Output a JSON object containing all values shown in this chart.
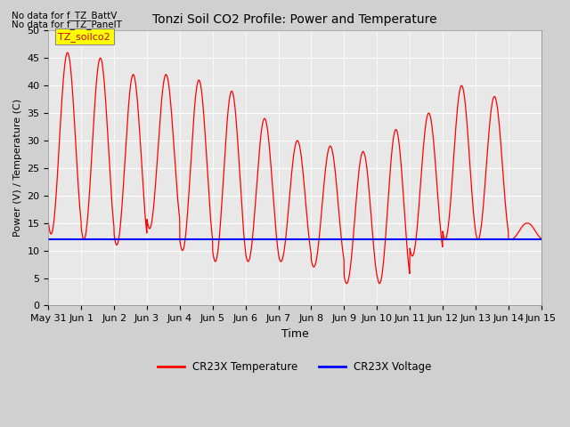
{
  "title": "Tonzi Soil CO2 Profile: Power and Temperature",
  "ylabel": "Power (V) / Temperature (C)",
  "xlabel": "Time",
  "no_data_text1": "No data for f_TZ_BattV",
  "no_data_text2": "No data for f_TZ_PanelT",
  "legend_label": "TZ_soilco2",
  "legend_color": "#ffff00",
  "legend_text_color": "#cc0000",
  "ylim": [
    0,
    50
  ],
  "yticks": [
    0,
    5,
    10,
    15,
    20,
    25,
    30,
    35,
    40,
    45,
    50
  ],
  "xtick_labels": [
    "May 31",
    "Jun 1",
    "Jun 2",
    "Jun 3",
    "Jun 4",
    "Jun 5",
    "Jun 6",
    "Jun 7",
    "Jun 8",
    "Jun 9",
    "Jun 10",
    "Jun 11",
    "Jun 12",
    "Jun 13",
    "Jun 14",
    "Jun 15"
  ],
  "voltage_value": 12.0,
  "voltage_color": "#0000ff",
  "temp_color": "#ff0000",
  "temp_series_label": "CR23X Temperature",
  "voltage_series_label": "CR23X Voltage",
  "fig_bg_color": "#d0d0d0",
  "plot_bg_color": "#e8e8e8",
  "grid_color": "#ffffff",
  "figsize": [
    6.4,
    4.8
  ],
  "dpi": 100
}
